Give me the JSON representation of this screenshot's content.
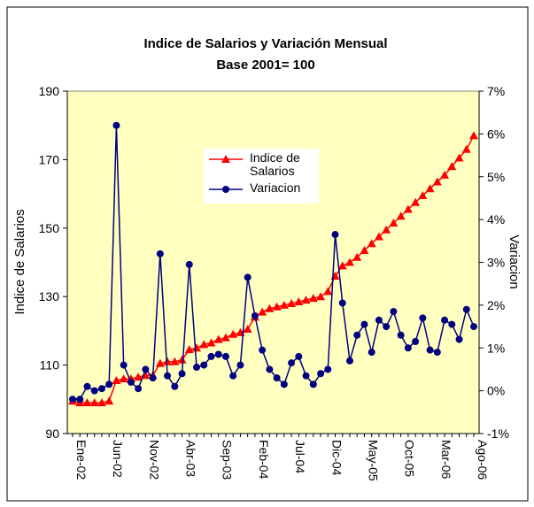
{
  "chart_data": {
    "type": "line",
    "title": "Indice de Salarios y Variación Mensual",
    "subtitle": "Base 2001= 100",
    "y_label": "Indice de Salarios",
    "y2_label": "Variacion",
    "categories": [
      "Ene-02",
      null,
      null,
      null,
      null,
      "Jun-02",
      null,
      null,
      null,
      null,
      "Nov-02",
      null,
      null,
      null,
      null,
      "Abr-03",
      null,
      null,
      null,
      null,
      "Sep-03",
      null,
      null,
      null,
      null,
      "Feb-04",
      null,
      null,
      null,
      null,
      "Jul-04",
      null,
      null,
      null,
      null,
      "Dic-04",
      null,
      null,
      null,
      null,
      "May-05",
      null,
      null,
      null,
      null,
      "Oct-05",
      null,
      null,
      null,
      null,
      "Mar-06",
      null,
      null,
      null,
      null,
      "Ago-06"
    ],
    "series": [
      {
        "name": "Indice de Salarios",
        "color": "#ff0000",
        "marker": "triangle",
        "values": [
          99.5,
          99,
          99,
          99,
          99,
          99.5,
          105.5,
          106,
          106,
          106.5,
          107,
          107,
          110.5,
          111,
          111,
          111.5,
          114.5,
          115,
          116,
          116.5,
          117.5,
          118,
          119,
          119.5,
          120.5,
          124,
          125.5,
          126.5,
          127,
          127.5,
          128,
          128.5,
          129,
          129.5,
          130,
          131.5,
          136,
          139,
          140,
          141.5,
          143.5,
          145.5,
          147.5,
          149.5,
          151.5,
          153.5,
          155.5,
          157.5,
          159.5,
          161.5,
          163.5,
          165.5,
          168,
          170.5,
          173,
          177
        ]
      },
      {
        "name": "Variacion",
        "color": "#000080",
        "marker": "circle",
        "axis": "y2",
        "values": [
          -0.2,
          -0.2,
          0.1,
          0,
          0.05,
          0.15,
          6.2,
          0.6,
          0.2,
          0.05,
          0.5,
          0.3,
          3.2,
          0.35,
          0.1,
          0.4,
          2.95,
          0.55,
          0.6,
          0.8,
          0.85,
          0.8,
          0.35,
          0.6,
          2.65,
          1.75,
          0.95,
          0.5,
          0.3,
          0.15,
          0.65,
          0.8,
          0.35,
          0.15,
          0.4,
          0.5,
          3.65,
          2.05,
          0.7,
          1.3,
          1.55,
          0.9,
          1.65,
          1.5,
          1.85,
          1.3,
          1,
          1.15,
          1.7,
          0.95,
          0.9,
          1.65,
          1.55,
          1.2,
          1.9,
          1.5
        ]
      }
    ],
    "ylim": [
      90,
      190
    ],
    "yticks": [
      90,
      110,
      130,
      150,
      170,
      190
    ],
    "y2lim": [
      -1,
      7
    ],
    "y2ticks": [
      {
        "value": -1,
        "label": "-1%"
      },
      {
        "value": 0,
        "label": "0%"
      },
      {
        "value": 1,
        "label": "1%"
      },
      {
        "value": 2,
        "label": "2%"
      },
      {
        "value": 3,
        "label": "3%"
      },
      {
        "value": 4,
        "label": "4%"
      },
      {
        "value": 5,
        "label": "5%"
      },
      {
        "value": 6,
        "label": "6%"
      },
      {
        "value": 7,
        "label": "7%"
      }
    ],
    "grid": false,
    "plot_background": "#ffffc0",
    "legend": "center"
  }
}
